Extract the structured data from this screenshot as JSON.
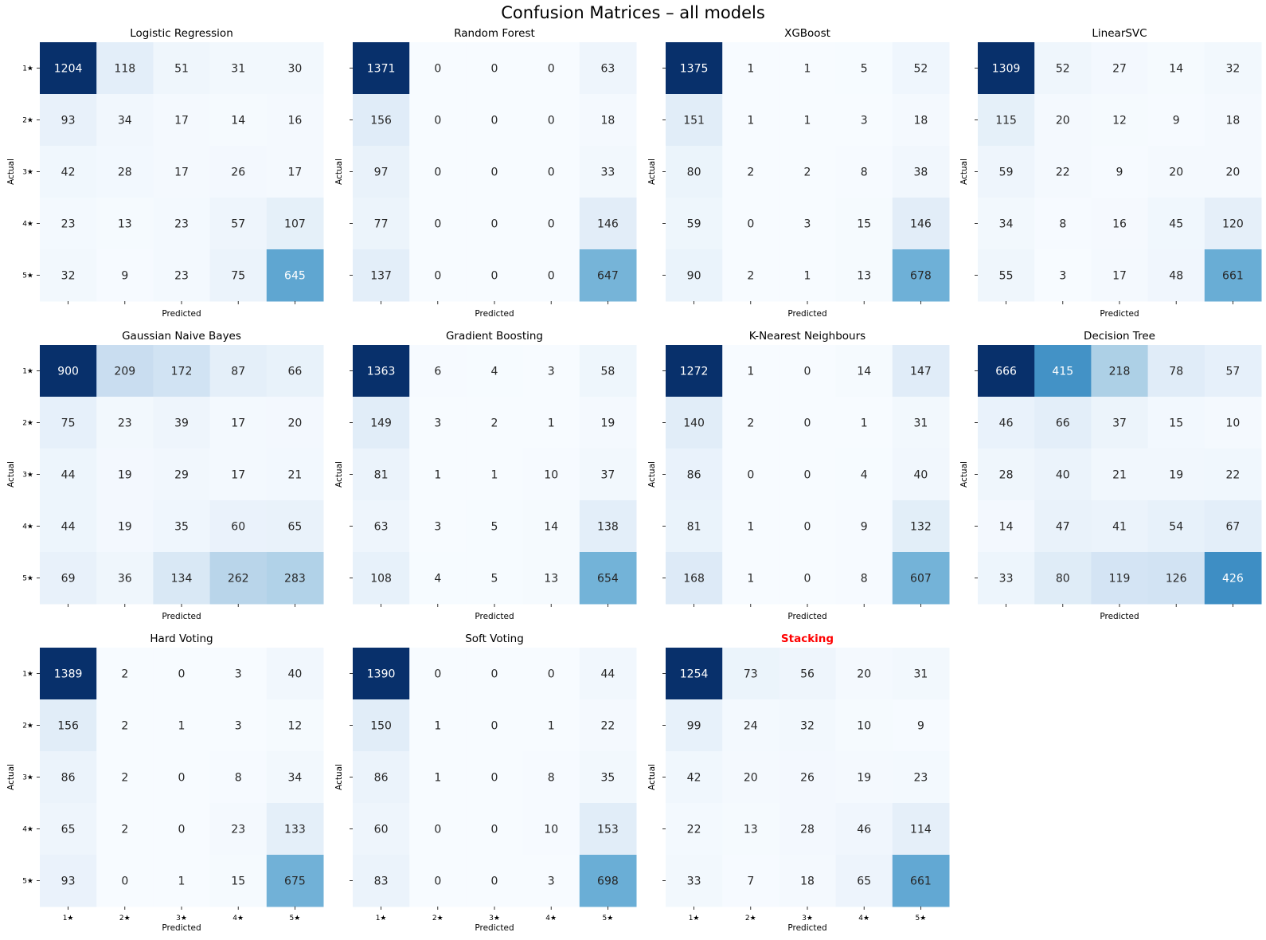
{
  "figure_title": "Confusion Matrices – all models",
  "chart_data": [
    {
      "type": "heatmap",
      "title": "Logistic Regression",
      "xlabel": "Predicted",
      "ylabel": "Actual",
      "row_labels": [
        "1★",
        "2★",
        "3★",
        "4★",
        "5★"
      ],
      "col_labels": [],
      "values": [
        [
          1204,
          118,
          51,
          31,
          30
        ],
        [
          93,
          34,
          17,
          14,
          16
        ],
        [
          42,
          28,
          17,
          26,
          17
        ],
        [
          23,
          13,
          23,
          57,
          107
        ],
        [
          32,
          9,
          23,
          75,
          645
        ]
      ]
    },
    {
      "type": "heatmap",
      "title": "Random Forest",
      "xlabel": "Predicted",
      "ylabel": "Actual",
      "row_labels": [],
      "col_labels": [],
      "values": [
        [
          1371,
          0,
          0,
          0,
          63
        ],
        [
          156,
          0,
          0,
          0,
          18
        ],
        [
          97,
          0,
          0,
          0,
          33
        ],
        [
          77,
          0,
          0,
          0,
          146
        ],
        [
          137,
          0,
          0,
          0,
          647
        ]
      ]
    },
    {
      "type": "heatmap",
      "title": "XGBoost",
      "xlabel": "Predicted",
      "ylabel": "Actual",
      "row_labels": [],
      "col_labels": [],
      "values": [
        [
          1375,
          1,
          1,
          5,
          52
        ],
        [
          151,
          1,
          1,
          3,
          18
        ],
        [
          80,
          2,
          2,
          8,
          38
        ],
        [
          59,
          0,
          3,
          15,
          146
        ],
        [
          90,
          2,
          1,
          13,
          678
        ]
      ]
    },
    {
      "type": "heatmap",
      "title": "LinearSVC",
      "xlabel": "Predicted",
      "ylabel": "Actual",
      "row_labels": [],
      "col_labels": [],
      "values": [
        [
          1309,
          52,
          27,
          14,
          32
        ],
        [
          115,
          20,
          12,
          9,
          18
        ],
        [
          59,
          22,
          9,
          20,
          20
        ],
        [
          34,
          8,
          16,
          45,
          120
        ],
        [
          55,
          3,
          17,
          48,
          661
        ]
      ]
    },
    {
      "type": "heatmap",
      "title": "Gaussian Naive Bayes",
      "xlabel": "Predicted",
      "ylabel": "Actual",
      "row_labels": [
        "1★",
        "2★",
        "3★",
        "4★",
        "5★"
      ],
      "col_labels": [],
      "values": [
        [
          900,
          209,
          172,
          87,
          66
        ],
        [
          75,
          23,
          39,
          17,
          20
        ],
        [
          44,
          19,
          29,
          17,
          21
        ],
        [
          44,
          19,
          35,
          60,
          65
        ],
        [
          69,
          36,
          134,
          262,
          283
        ]
      ]
    },
    {
      "type": "heatmap",
      "title": "Gradient Boosting",
      "xlabel": "Predicted",
      "ylabel": "Actual",
      "row_labels": [],
      "col_labels": [],
      "values": [
        [
          1363,
          6,
          4,
          3,
          58
        ],
        [
          149,
          3,
          2,
          1,
          19
        ],
        [
          81,
          1,
          1,
          10,
          37
        ],
        [
          63,
          3,
          5,
          14,
          138
        ],
        [
          108,
          4,
          5,
          13,
          654
        ]
      ]
    },
    {
      "type": "heatmap",
      "title": "K-Nearest Neighbours",
      "xlabel": "Predicted",
      "ylabel": "Actual",
      "row_labels": [],
      "col_labels": [],
      "values": [
        [
          1272,
          1,
          0,
          14,
          147
        ],
        [
          140,
          2,
          0,
          1,
          31
        ],
        [
          86,
          0,
          0,
          4,
          40
        ],
        [
          81,
          1,
          0,
          9,
          132
        ],
        [
          168,
          1,
          0,
          8,
          607
        ]
      ]
    },
    {
      "type": "heatmap",
      "title": "Decision Tree",
      "xlabel": "Predicted",
      "ylabel": "Actual",
      "row_labels": [],
      "col_labels": [],
      "values": [
        [
          666,
          415,
          218,
          78,
          57
        ],
        [
          46,
          66,
          37,
          15,
          10
        ],
        [
          28,
          40,
          21,
          19,
          22
        ],
        [
          14,
          47,
          41,
          54,
          67
        ],
        [
          33,
          80,
          119,
          126,
          426
        ]
      ]
    },
    {
      "type": "heatmap",
      "title": "Hard Voting",
      "xlabel": "Predicted",
      "ylabel": "Actual",
      "row_labels": [
        "1★",
        "2★",
        "3★",
        "4★",
        "5★"
      ],
      "col_labels": [
        "1★",
        "2★",
        "3★",
        "4★",
        "5★"
      ],
      "values": [
        [
          1389,
          2,
          0,
          3,
          40
        ],
        [
          156,
          2,
          1,
          3,
          12
        ],
        [
          86,
          2,
          0,
          8,
          34
        ],
        [
          65,
          2,
          0,
          23,
          133
        ],
        [
          93,
          0,
          1,
          15,
          675
        ]
      ]
    },
    {
      "type": "heatmap",
      "title": "Soft Voting",
      "xlabel": "Predicted",
      "ylabel": "Actual",
      "row_labels": [],
      "col_labels": [
        "1★",
        "2★",
        "3★",
        "4★",
        "5★"
      ],
      "values": [
        [
          1390,
          0,
          0,
          0,
          44
        ],
        [
          150,
          1,
          0,
          1,
          22
        ],
        [
          86,
          1,
          0,
          8,
          35
        ],
        [
          60,
          0,
          0,
          10,
          153
        ],
        [
          83,
          0,
          0,
          3,
          698
        ]
      ]
    },
    {
      "type": "heatmap",
      "title": "Stacking",
      "highlight": true,
      "title_color": "#ff0000",
      "xlabel": "Predicted",
      "ylabel": "Actual",
      "row_labels": [],
      "col_labels": [
        "1★",
        "2★",
        "3★",
        "4★",
        "5★"
      ],
      "values": [
        [
          1254,
          73,
          56,
          20,
          31
        ],
        [
          99,
          24,
          32,
          10,
          9
        ],
        [
          42,
          20,
          26,
          19,
          23
        ],
        [
          22,
          13,
          28,
          46,
          114
        ],
        [
          33,
          7,
          18,
          65,
          661
        ]
      ]
    }
  ],
  "colormap": "Blues",
  "colors": {
    "low": "#f7fbff",
    "high": "#08306b",
    "dark_text": "#262626",
    "light_text": "#ffffff",
    "highlight": "#ff0000"
  }
}
